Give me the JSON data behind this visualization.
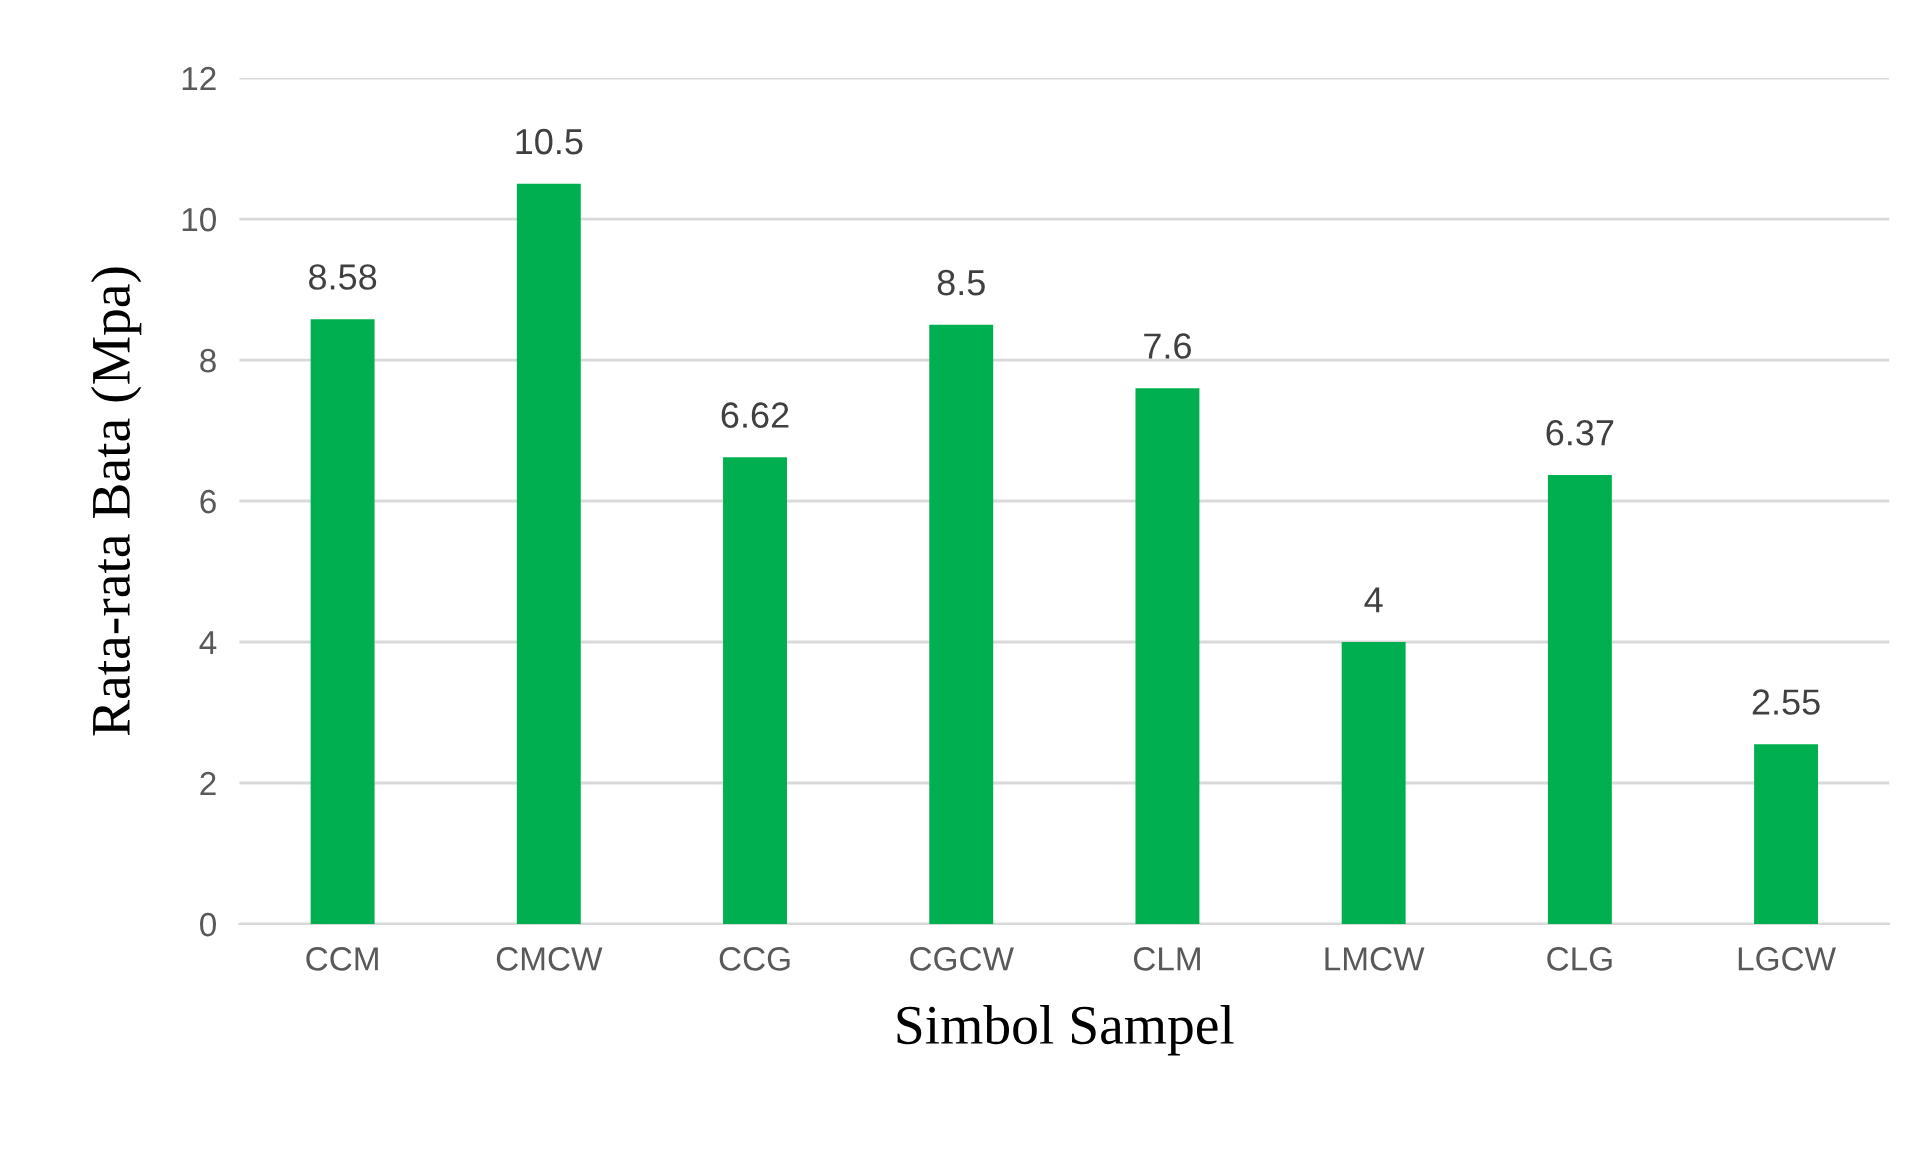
{
  "chart_data": {
    "type": "bar",
    "xlabel": "Simbol Sampel",
    "ylabel": "Rata-rata Bata (Mpa)",
    "categories": [
      "CCM",
      "CMCW",
      "CCG",
      "CGCW",
      "CLM",
      "LMCW",
      "CLG",
      "LGCW"
    ],
    "values": [
      8.58,
      10.5,
      6.62,
      8.5,
      7.6,
      4,
      6.37,
      2.55
    ],
    "color": "#00b050",
    "ylim": [
      0,
      12
    ],
    "yticks": [
      0,
      2,
      4,
      6,
      8,
      10,
      12
    ],
    "grid": "y",
    "data_labels": true,
    "legend": false
  }
}
